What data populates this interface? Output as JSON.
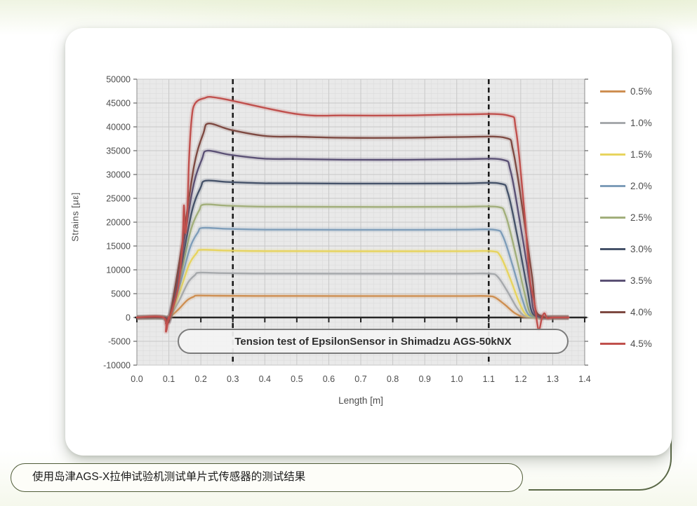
{
  "caption": {
    "text": "使用岛津AGS-X拉伸试验机测试单片式传感器的测试结果"
  },
  "chart_data": {
    "type": "line",
    "title": "Tension test of EpsilonSensor in Shimadzu AGS-50kNX",
    "xlabel": "Length [m]",
    "ylabel": "Strains [με]",
    "xlim": [
      0.0,
      1.4
    ],
    "ylim": [
      -10000,
      50000
    ],
    "x_ticks": [
      "0.0",
      "0.1",
      "0.2",
      "0.3",
      "0.4",
      "0.5",
      "0.6",
      "0.7",
      "0.8",
      "0.9",
      "1.0",
      "1.1",
      "1.2",
      "1.3",
      "1.4"
    ],
    "y_ticks": [
      "50000",
      "45000",
      "40000",
      "35000",
      "30000",
      "25000",
      "20000",
      "15000",
      "10000",
      "5000",
      "0",
      "-5000",
      "-10000"
    ],
    "grid": true,
    "legend_position": "right",
    "dashed_marker_x": [
      0.3,
      1.1
    ],
    "plot_bg": "#E9E9E9",
    "series": [
      {
        "name": "0.5%",
        "color": "#CE8F52",
        "peak": 4600,
        "plateau": 4500,
        "dip": -200
      },
      {
        "name": "1.0%",
        "color": "#A6A9AC",
        "peak": 9400,
        "plateau": 9200,
        "dip": -250
      },
      {
        "name": "1.5%",
        "color": "#E7D45F",
        "peak": 14200,
        "plateau": 13900,
        "dip": -300
      },
      {
        "name": "2.0%",
        "color": "#7E9DB9",
        "peak": 18800,
        "plateau": 18400,
        "dip": -350
      },
      {
        "name": "2.5%",
        "color": "#A2AF7B",
        "peak": 23700,
        "plateau": 23200,
        "dip": -400
      },
      {
        "name": "3.0%",
        "color": "#46536A",
        "peak": 28700,
        "plateau": 28100,
        "dip": -450
      },
      {
        "name": "3.5%",
        "color": "#5B5175",
        "peak": 35000,
        "plateau": 33100,
        "dip": -500
      },
      {
        "name": "4.0%",
        "color": "#7E4A42",
        "peak": 40700,
        "plateau": 37700,
        "dip": -1300
      },
      {
        "name": "4.5%",
        "color": "#C0504D",
        "peak": 46000,
        "plateau": 42400,
        "dip": -3000,
        "artifacts": true
      }
    ]
  }
}
